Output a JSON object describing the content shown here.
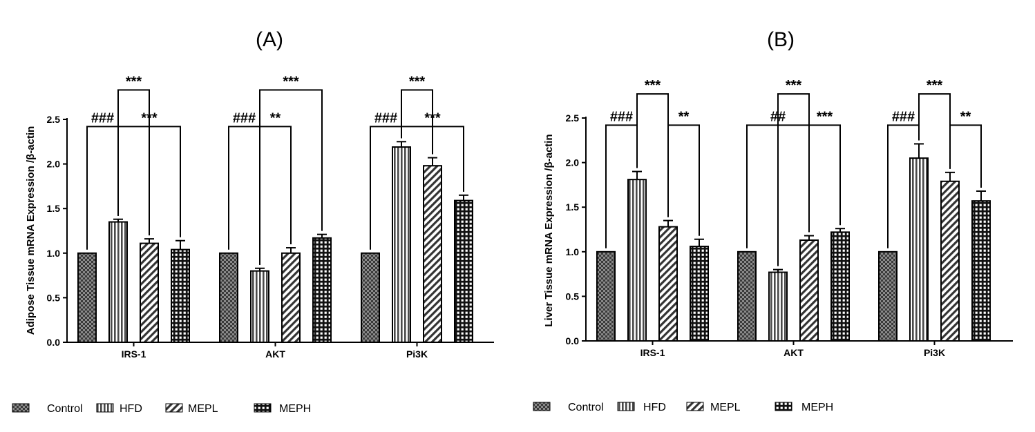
{
  "legend": {
    "items": [
      {
        "label": "Control",
        "pattern": "checker"
      },
      {
        "label": "HFD",
        "pattern": "vlines"
      },
      {
        "label": "MEPL",
        "pattern": "diag"
      },
      {
        "label": "MEPH",
        "pattern": "grid"
      }
    ]
  },
  "chart_data": [
    {
      "type": "bar",
      "title": "(A)",
      "xlabel": "",
      "ylabel": "Adipose Tissue mRNA Expression /β-actin",
      "ylim": [
        0,
        2.5
      ],
      "yticks": [
        "0.0",
        "0.5",
        "1.0",
        "1.5",
        "2.0",
        "2.5"
      ],
      "categories": [
        "IRS-1",
        "AKT",
        "Pi3K"
      ],
      "series": [
        {
          "name": "Control",
          "values": [
            1.0,
            1.0,
            1.0
          ],
          "errors": [
            0,
            0,
            0
          ]
        },
        {
          "name": "HFD",
          "values": [
            1.35,
            0.8,
            2.19
          ],
          "errors": [
            0.03,
            0.03,
            0.06
          ]
        },
        {
          "name": "MEPL",
          "values": [
            1.11,
            1.0,
            1.98
          ],
          "errors": [
            0.05,
            0.06,
            0.09
          ]
        },
        {
          "name": "MEPH",
          "values": [
            1.04,
            1.17,
            1.59
          ],
          "errors": [
            0.1,
            0.04,
            0.06
          ]
        }
      ],
      "significance": [
        {
          "category": 0,
          "from": 0,
          "to": 1,
          "label": "###",
          "level": 2.42
        },
        {
          "category": 0,
          "from": 1,
          "to": 2,
          "label": "***",
          "level": 2.83
        },
        {
          "category": 0,
          "from": 1,
          "to": 3,
          "label": "***",
          "level": 2.42
        },
        {
          "category": 1,
          "from": 0,
          "to": 1,
          "label": "###",
          "level": 2.42
        },
        {
          "category": 1,
          "from": 1,
          "to": 2,
          "label": "**",
          "level": 2.42
        },
        {
          "category": 1,
          "from": 1,
          "to": 3,
          "label": "***",
          "level": 2.83
        },
        {
          "category": 2,
          "from": 0,
          "to": 1,
          "label": "###",
          "level": 2.42
        },
        {
          "category": 2,
          "from": 1,
          "to": 2,
          "label": "***",
          "level": 2.83
        },
        {
          "category": 2,
          "from": 1,
          "to": 3,
          "label": "***",
          "level": 2.42
        }
      ]
    },
    {
      "type": "bar",
      "title": "(B)",
      "xlabel": "",
      "ylabel": "Liver Tissue mRNA Expression /β-actin",
      "ylim": [
        0,
        2.5
      ],
      "yticks": [
        "0.0",
        "0.5",
        "1.0",
        "1.5",
        "2.0",
        "2.5"
      ],
      "categories": [
        "IRS-1",
        "AKT",
        "Pi3K"
      ],
      "series": [
        {
          "name": "Control",
          "values": [
            1.0,
            1.0,
            1.0
          ],
          "errors": [
            0,
            0,
            0
          ]
        },
        {
          "name": "HFD",
          "values": [
            1.81,
            0.77,
            2.05
          ],
          "errors": [
            0.09,
            0.03,
            0.16
          ]
        },
        {
          "name": "MEPL",
          "values": [
            1.28,
            1.13,
            1.79
          ],
          "errors": [
            0.07,
            0.05,
            0.1
          ]
        },
        {
          "name": "MEPH",
          "values": [
            1.06,
            1.22,
            1.57
          ],
          "errors": [
            0.08,
            0.04,
            0.11
          ]
        }
      ],
      "significance": [
        {
          "category": 0,
          "from": 0,
          "to": 1,
          "label": "###",
          "level": 2.42
        },
        {
          "category": 0,
          "from": 1,
          "to": 2,
          "label": "***",
          "level": 2.77
        },
        {
          "category": 0,
          "from": 2,
          "to": 3,
          "label": "**",
          "level": 2.42
        },
        {
          "category": 1,
          "from": 0,
          "to": 2,
          "label": "##",
          "level": 2.42
        },
        {
          "category": 1,
          "from": 1,
          "to": 2,
          "label": "***",
          "level": 2.77
        },
        {
          "category": 1,
          "from": 2,
          "to": 3,
          "label": "***",
          "level": 2.42
        },
        {
          "category": 2,
          "from": 0,
          "to": 1,
          "label": "###",
          "level": 2.42
        },
        {
          "category": 2,
          "from": 1,
          "to": 2,
          "label": "***",
          "level": 2.77
        },
        {
          "category": 2,
          "from": 2,
          "to": 3,
          "label": "**",
          "level": 2.42
        }
      ]
    }
  ]
}
